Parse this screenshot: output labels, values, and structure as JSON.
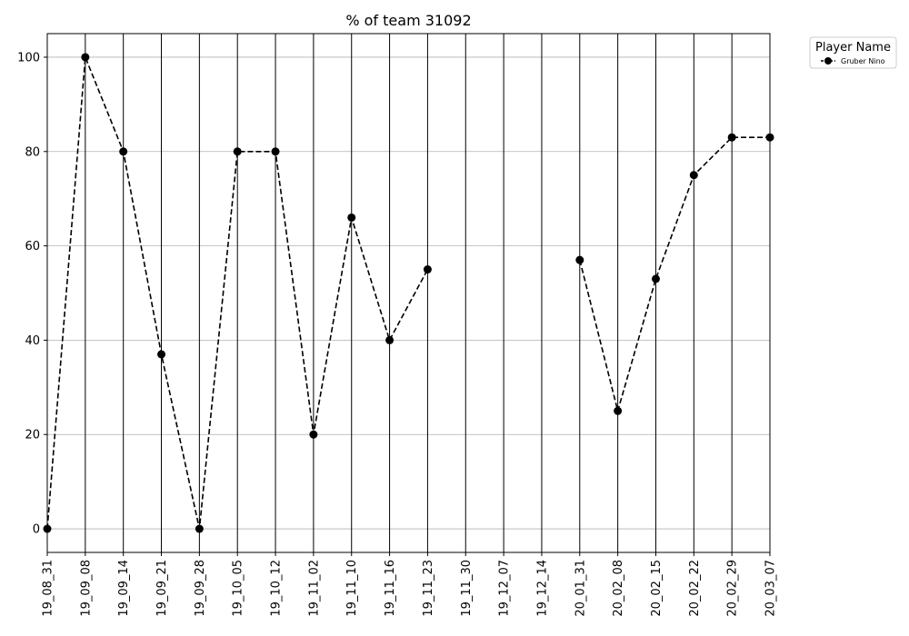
{
  "chart_data": {
    "type": "line",
    "title": "% of team 31092",
    "xlabel": "",
    "ylabel": "",
    "categories": [
      "19_08_31",
      "19_09_08",
      "19_09_14",
      "19_09_21",
      "19_09_28",
      "19_10_05",
      "19_10_12",
      "19_11_02",
      "19_11_10",
      "19_11_16",
      "19_11_23",
      "19_11_30",
      "19_12_07",
      "19_12_14",
      "20_01_31",
      "20_02_08",
      "20_02_15",
      "20_02_22",
      "20_02_29",
      "20_03_07"
    ],
    "series": [
      {
        "name": "Gruber Nino",
        "values": [
          0,
          100,
          80,
          37,
          0,
          80,
          80,
          20,
          66,
          40,
          55,
          null,
          null,
          null,
          57,
          25,
          53,
          75,
          83,
          83
        ],
        "color": "#000000",
        "line_style": "dashed",
        "marker": "circle"
      }
    ],
    "yticks": [
      0,
      20,
      40,
      60,
      80,
      100
    ],
    "ylim": [
      -5,
      105
    ],
    "grid": {
      "horizontal": true,
      "vertical_lines_at_categories": true
    },
    "legend": {
      "title": "Player Name",
      "placement": "outside-top-right"
    }
  }
}
